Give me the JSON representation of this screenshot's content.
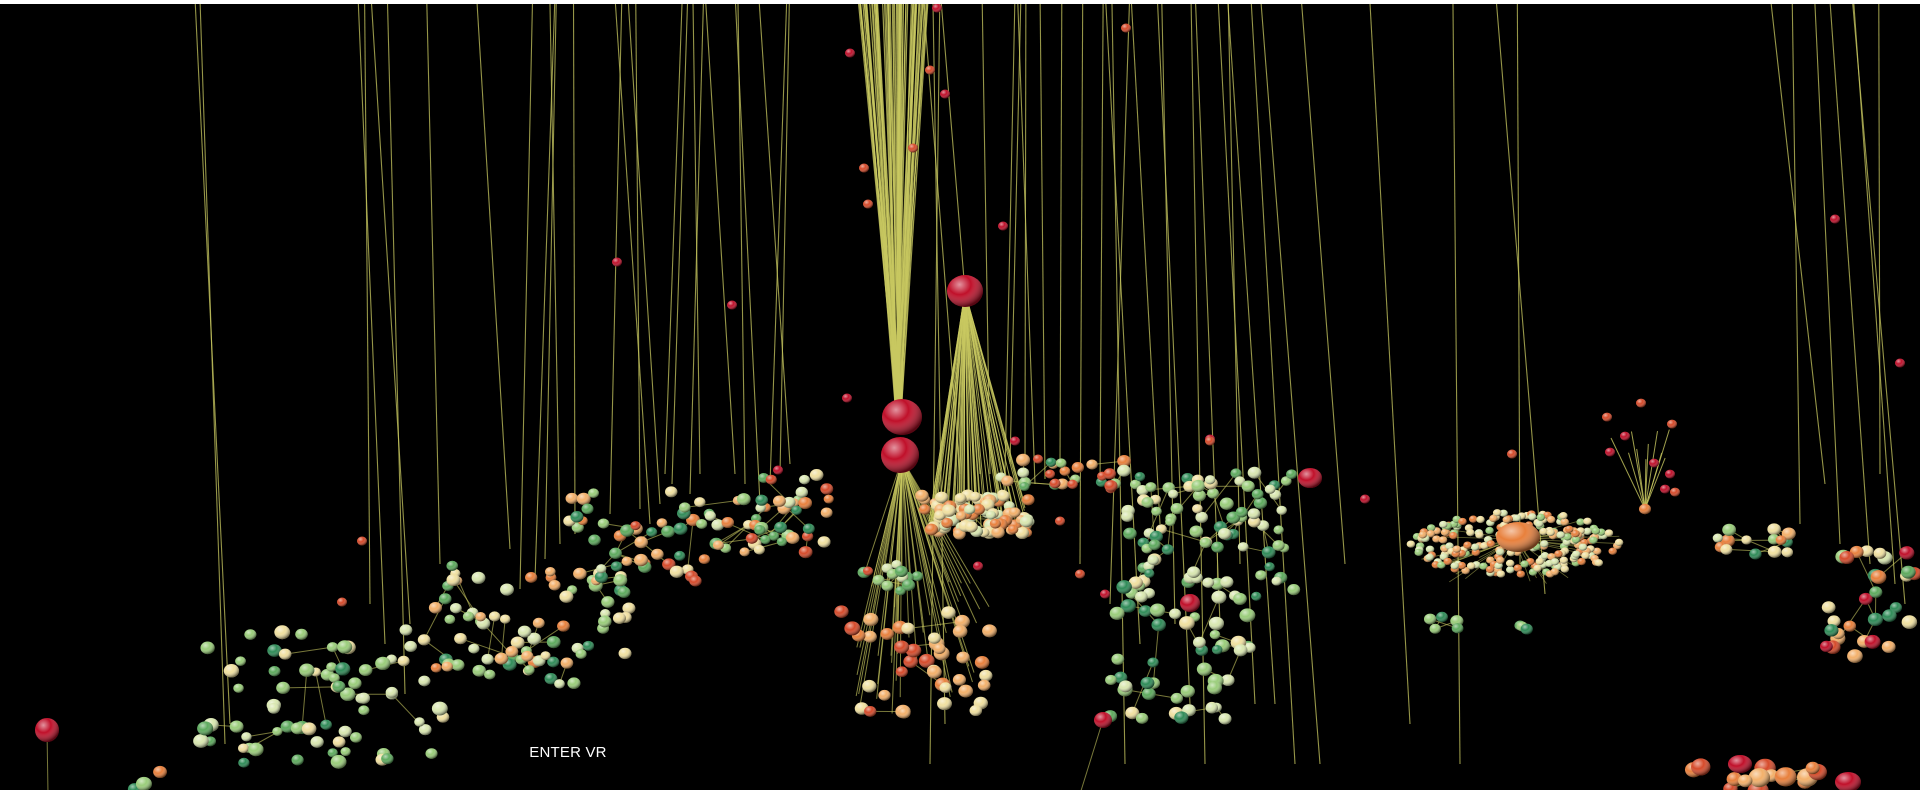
{
  "scene": {
    "background_color": "#000000",
    "edge_color": "#c8c860",
    "hub_color": "#c0102a",
    "node_palette": [
      "#2e8b57",
      "#5daa5d",
      "#9acd7a",
      "#d9e7b0",
      "#f0e0a0",
      "#f3b06a",
      "#e8803c",
      "#d64a2a",
      "#c0102a"
    ]
  },
  "vr": {
    "enter_label": "ENTER VR"
  }
}
